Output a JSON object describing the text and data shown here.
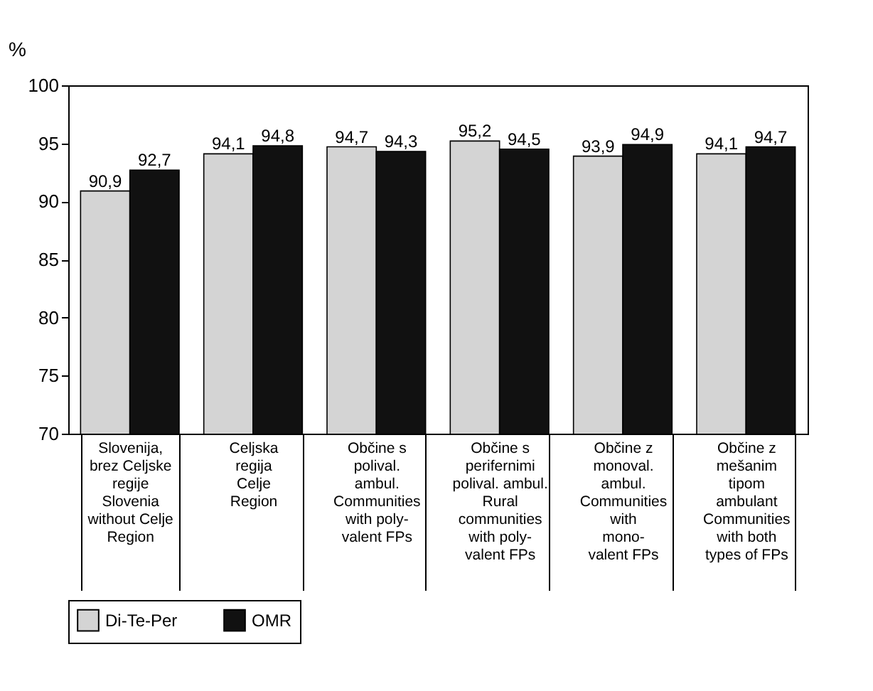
{
  "chart_data": {
    "type": "bar",
    "ylabel": "%",
    "categories": [
      "Slovenija,\nbrez Celjske\nregije\nSlovenia\nwithout Celje\nRegion",
      "Celjska\nregija\nCelje\nRegion",
      "Občine s\npolival.\nambul.\nCommunities\nwith poly-\nvalent FPs",
      "Občine s\nperifernimi\npolival. ambul.\nRural\ncommunities\nwith poly-\nvalent FPs",
      "Občine z\nmonoval.\nambul.\nCommunities\nwith\nmono-\nvalent FPs",
      "Občine z\nmešanim\ntipom\nambulant\nCommunities\nwith both\ntypes of FPs"
    ],
    "series": [
      {
        "name": "Di-Te-Per",
        "color": "#d4d4d4",
        "values": [
          90.9,
          94.1,
          94.7,
          95.2,
          93.9,
          94.1
        ],
        "value_labels": [
          "90,9",
          "94,1",
          "94,7",
          "95,2",
          "93,9",
          "94,1"
        ]
      },
      {
        "name": "OMR",
        "color": "#111111",
        "values": [
          92.7,
          94.8,
          94.3,
          94.5,
          94.9,
          94.7
        ],
        "value_labels": [
          "92,7",
          "94,8",
          "94,3",
          "94,5",
          "94,9",
          "94,7"
        ]
      }
    ],
    "ylim": [
      70,
      100
    ],
    "yticks": [
      70,
      75,
      80,
      85,
      90,
      95,
      100
    ],
    "grid": false,
    "legend": "bottom"
  }
}
